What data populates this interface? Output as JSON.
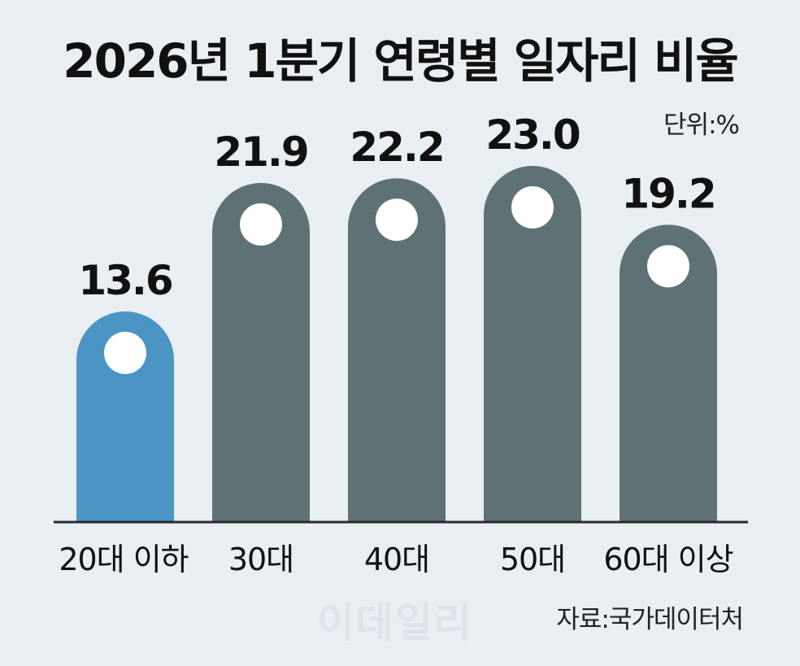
{
  "chart_data": {
    "type": "bar",
    "title": "2026년 1분기 연령별 일자리 비율",
    "unit_label": "단위:%",
    "categories": [
      "20대 이하",
      "30대",
      "40대",
      "50대",
      "60대 이상"
    ],
    "values": [
      13.6,
      21.9,
      22.2,
      23.0,
      19.2
    ],
    "value_labels": [
      "13.6",
      "21.9",
      "22.2",
      "23.0",
      "19.2"
    ],
    "ylim": [
      0,
      23.0
    ],
    "grid": false,
    "legend": "none",
    "source": "자료:국가데이터처",
    "colors": {
      "highlight": "#4a95c4",
      "default": "#5e7275",
      "axis": "#2a2a2a",
      "background": "#e9eef3",
      "marker": "#ffffff"
    }
  },
  "watermark": "이데일리"
}
